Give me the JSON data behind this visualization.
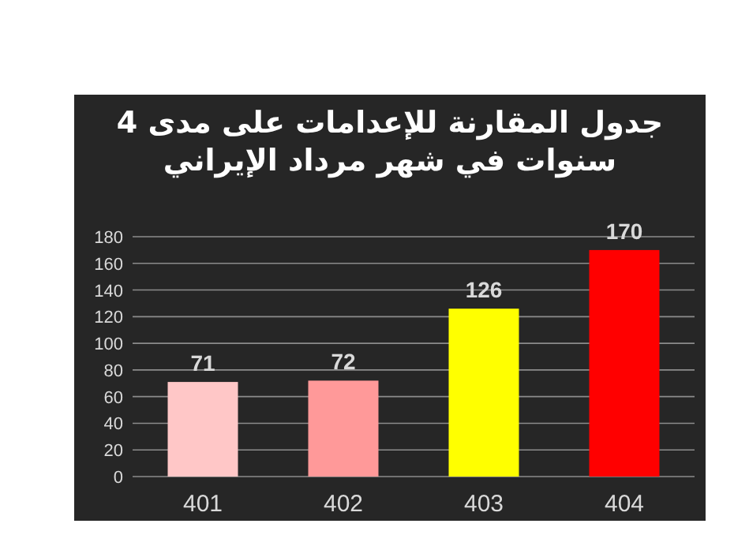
{
  "chart_data": {
    "type": "bar",
    "title": "جدول المقارنة للإعدامات على مدى 4 سنوات في شهر مرداد الإيراني",
    "categories": [
      "401",
      "402",
      "403",
      "404"
    ],
    "values": [
      71,
      72,
      126,
      170
    ],
    "colors": [
      "#ffc7c7",
      "#ff9999",
      "#ffff00",
      "#ff0000"
    ],
    "ylim": [
      0,
      180
    ],
    "yticks": [
      0,
      20,
      40,
      60,
      80,
      100,
      120,
      140,
      160,
      180
    ],
    "grid": "y",
    "data_labels": true
  }
}
